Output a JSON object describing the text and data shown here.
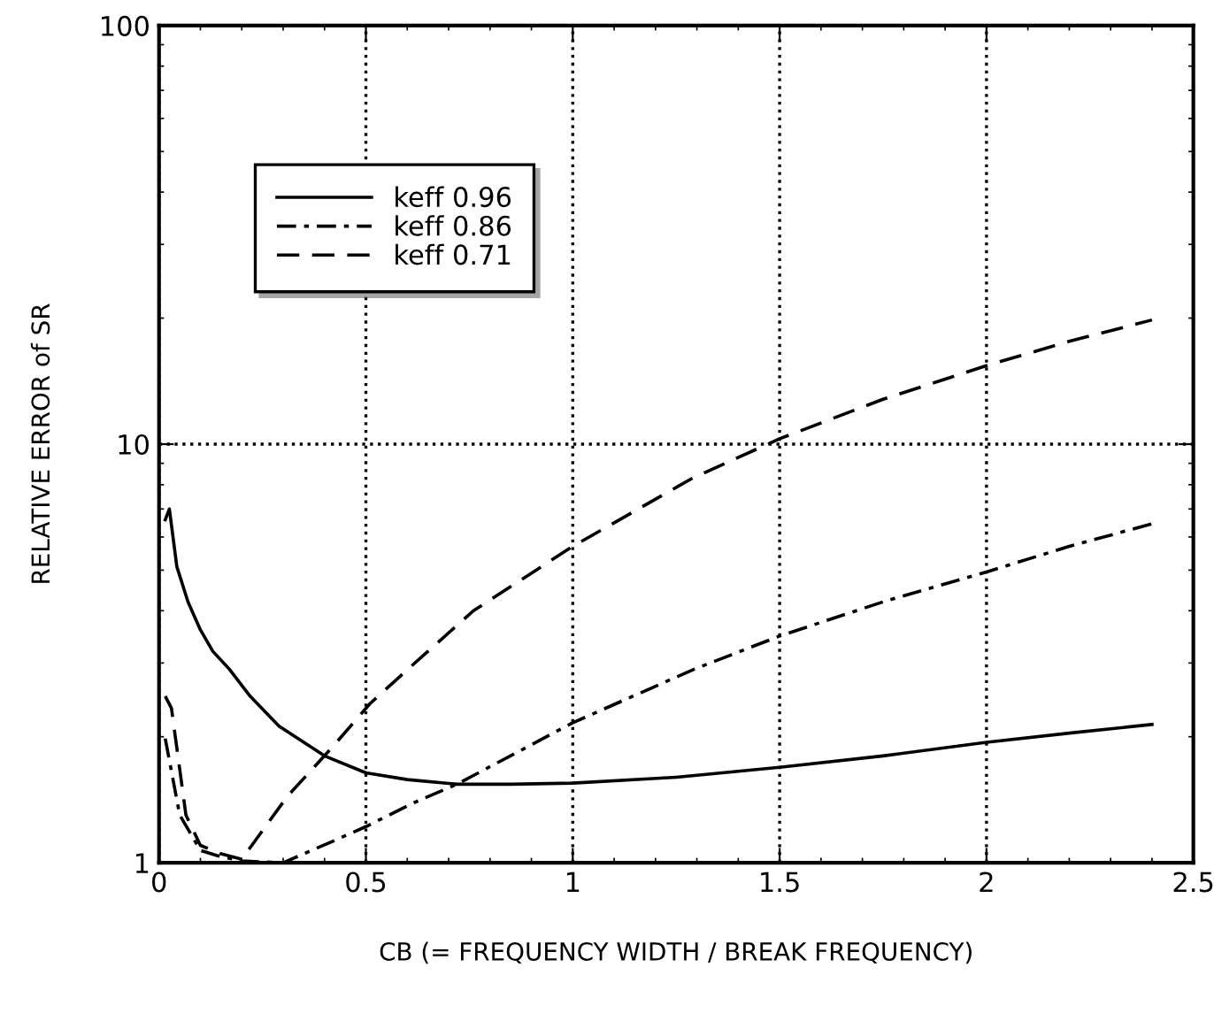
{
  "chart_data": {
    "type": "line",
    "xlabel": "CB (= FREQUENCY WIDTH / BREAK FREQUENCY)",
    "ylabel": "RELATIVE ERROR of SR",
    "log": "y",
    "grid": true,
    "legend": "top left",
    "xlim": [
      0,
      2.5
    ],
    "xticks": [
      0,
      0.5,
      1,
      1.5,
      2,
      2.5
    ],
    "ylim": [
      1,
      100
    ],
    "yticks": [
      1,
      10,
      100
    ],
    "series": [
      {
        "name": "keff 0.96",
        "color": "#000000",
        "line_style": "solid",
        "x": [
          0.015,
          0.025,
          0.043,
          0.07,
          0.1,
          0.13,
          0.17,
          0.22,
          0.29,
          0.4,
          0.5,
          0.6,
          0.72,
          0.85,
          1.0,
          1.25,
          1.5,
          1.75,
          2.0,
          2.2,
          2.4
        ],
        "values": [
          6.6,
          7.0,
          5.1,
          4.2,
          3.6,
          3.2,
          2.9,
          2.5,
          2.12,
          1.8,
          1.64,
          1.58,
          1.54,
          1.54,
          1.55,
          1.6,
          1.69,
          1.8,
          1.94,
          2.04,
          2.14
        ]
      },
      {
        "name": "keff 0.86",
        "color": "#000000",
        "line_style": "dashdot",
        "x": [
          0.015,
          0.05,
          0.1,
          0.14,
          0.2,
          0.3,
          0.415,
          0.5,
          0.615,
          0.72,
          1.0,
          1.29,
          1.5,
          1.75,
          2.0,
          2.2,
          2.4
        ],
        "values": [
          1.98,
          1.3,
          1.07,
          1.04,
          1.01,
          1.0,
          1.12,
          1.22,
          1.39,
          1.54,
          2.16,
          2.89,
          3.48,
          4.2,
          4.95,
          5.7,
          6.45
        ]
      },
      {
        "name": "keff 0.71",
        "color": "#000000",
        "line_style": "dashed",
        "x": [
          0.015,
          0.03,
          0.065,
          0.1,
          0.15,
          0.2,
          0.31,
          0.415,
          0.51,
          0.615,
          0.76,
          1.0,
          1.29,
          1.5,
          1.75,
          2.0,
          2.2,
          2.4
        ],
        "values": [
          2.5,
          2.34,
          1.3,
          1.1,
          1.05,
          1.02,
          1.44,
          1.87,
          2.4,
          2.98,
          4.0,
          5.7,
          8.3,
          10.3,
          12.8,
          15.4,
          17.6,
          19.8
        ]
      }
    ]
  }
}
